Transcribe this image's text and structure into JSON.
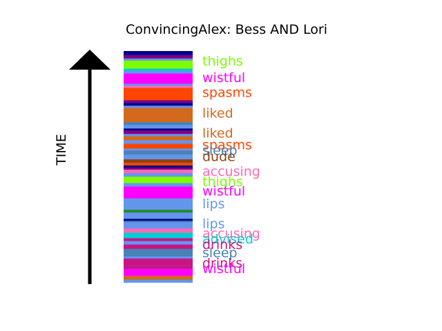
{
  "chart_data": {
    "type": "timeline-strip",
    "title": "ConvincingAlex: Bess AND Lori",
    "ylabel": "TIME",
    "ylim": [
      0,
      100
    ],
    "stripe_base_color": "#6495ED",
    "colors": {
      "thighs": "#7CFC00",
      "wistful": "#FF00FF",
      "spasms": "#FF4500",
      "liked": "#D2691E",
      "sleep": "#4682B4",
      "dude": "#8B4513",
      "accusing": "#FF69B4",
      "lips": "#6495ED",
      "advised": "#00CED1",
      "drinks": "#C71585",
      "indigo": "#00008B",
      "purple": "#800080"
    },
    "stripes": [
      {
        "y0": 0.0,
        "y1": 1.3,
        "color": "#6495ED"
      },
      {
        "y0": 1.3,
        "y1": 3.0,
        "color": "#D2691E"
      },
      {
        "y0": 3.0,
        "y1": 6.0,
        "color": "#FF00FF"
      },
      {
        "y0": 6.0,
        "y1": 7.2,
        "color": "#C71585"
      },
      {
        "y0": 7.2,
        "y1": 10.5,
        "color": "#C71585"
      },
      {
        "y0": 10.5,
        "y1": 11.4,
        "color": "#6495ED"
      },
      {
        "y0": 11.4,
        "y1": 14.6,
        "color": "#4682B4"
      },
      {
        "y0": 14.6,
        "y1": 16.5,
        "color": "#C71585"
      },
      {
        "y0": 16.5,
        "y1": 18.0,
        "color": "#6495ED"
      },
      {
        "y0": 18.0,
        "y1": 19.2,
        "color": "#C71585"
      },
      {
        "y0": 19.2,
        "y1": 21.6,
        "color": "#00CED1"
      },
      {
        "y0": 21.6,
        "y1": 23.4,
        "color": "#FF69B4"
      },
      {
        "y0": 23.4,
        "y1": 24.4,
        "color": "#6495ED"
      },
      {
        "y0": 24.4,
        "y1": 26.1,
        "color": "#6495ED"
      },
      {
        "y0": 26.1,
        "y1": 26.7,
        "color": "#4682B4"
      },
      {
        "y0": 26.7,
        "y1": 27.6,
        "color": "#00008B"
      },
      {
        "y0": 27.6,
        "y1": 29.1,
        "color": "#6495ED"
      },
      {
        "y0": 29.1,
        "y1": 30.3,
        "color": "#6495ED"
      },
      {
        "y0": 30.3,
        "y1": 31.5,
        "color": "#228B22"
      },
      {
        "y0": 31.5,
        "y1": 36.4,
        "color": "#6495ED"
      },
      {
        "y0": 36.4,
        "y1": 38.8,
        "color": "#FF00FF"
      },
      {
        "y0": 38.8,
        "y1": 41.5,
        "color": "#FF00FF"
      },
      {
        "y0": 41.5,
        "y1": 43.0,
        "color": "#6495ED"
      },
      {
        "y0": 43.0,
        "y1": 45.8,
        "color": "#7CFC00"
      },
      {
        "y0": 45.8,
        "y1": 47.3,
        "color": "#6495ED"
      },
      {
        "y0": 47.3,
        "y1": 48.8,
        "color": "#FF69B4"
      },
      {
        "y0": 48.8,
        "y1": 49.7,
        "color": "#800080"
      },
      {
        "y0": 49.7,
        "y1": 50.6,
        "color": "#00008B"
      },
      {
        "y0": 50.6,
        "y1": 51.8,
        "color": "#FF4500"
      },
      {
        "y0": 51.8,
        "y1": 53.3,
        "color": "#8B4513"
      },
      {
        "y0": 53.3,
        "y1": 55.4,
        "color": "#6495ED"
      },
      {
        "y0": 55.4,
        "y1": 57.0,
        "color": "#4682B4"
      },
      {
        "y0": 57.0,
        "y1": 57.9,
        "color": "#6495ED"
      },
      {
        "y0": 57.9,
        "y1": 60.0,
        "color": "#FF4500"
      },
      {
        "y0": 60.0,
        "y1": 61.5,
        "color": "#6495ED"
      },
      {
        "y0": 61.5,
        "y1": 63.3,
        "color": "#D2691E"
      },
      {
        "y0": 63.3,
        "y1": 64.2,
        "color": "#6495ED"
      },
      {
        "y0": 64.2,
        "y1": 65.7,
        "color": "#800080"
      },
      {
        "y0": 65.7,
        "y1": 66.6,
        "color": "#00008B"
      },
      {
        "y0": 66.6,
        "y1": 68.1,
        "color": "#6495ED"
      },
      {
        "y0": 68.1,
        "y1": 69.3,
        "color": "#4682B4"
      },
      {
        "y0": 69.3,
        "y1": 75.5,
        "color": "#D2691E"
      },
      {
        "y0": 75.5,
        "y1": 76.4,
        "color": "#6495ED"
      },
      {
        "y0": 76.4,
        "y1": 77.6,
        "color": "#00008B"
      },
      {
        "y0": 77.6,
        "y1": 78.8,
        "color": "#800080"
      },
      {
        "y0": 78.8,
        "y1": 84.1,
        "color": "#FF4500"
      },
      {
        "y0": 84.1,
        "y1": 85.0,
        "color": "#FF69B4"
      },
      {
        "y0": 85.0,
        "y1": 85.9,
        "color": "#6495ED"
      },
      {
        "y0": 85.9,
        "y1": 90.3,
        "color": "#FF00FF"
      },
      {
        "y0": 90.3,
        "y1": 91.5,
        "color": "#6495ED"
      },
      {
        "y0": 91.5,
        "y1": 92.4,
        "color": "#00CED1"
      },
      {
        "y0": 92.4,
        "y1": 95.9,
        "color": "#7CFC00"
      },
      {
        "y0": 95.9,
        "y1": 96.8,
        "color": "#6495ED"
      },
      {
        "y0": 96.8,
        "y1": 98.2,
        "color": "#800080"
      },
      {
        "y0": 98.2,
        "y1": 100.0,
        "color": "#00008B"
      }
    ],
    "labels": [
      {
        "text": "thighs",
        "y": 95.8,
        "color": "#7CFC00"
      },
      {
        "text": "wistful",
        "y": 88.7,
        "color": "#FF00FF"
      },
      {
        "text": "spasms",
        "y": 82.3,
        "color": "#FF4500"
      },
      {
        "text": "liked",
        "y": 73.4,
        "color": "#D2691E"
      },
      {
        "text": "liked",
        "y": 64.8,
        "color": "#D2691E"
      },
      {
        "text": "spasms",
        "y": 59.7,
        "color": "#FF4500"
      },
      {
        "text": "sleep",
        "y": 57.3,
        "color": "#4682B4"
      },
      {
        "text": "dude",
        "y": 54.6,
        "color": "#8B4513"
      },
      {
        "text": "accusing",
        "y": 48.2,
        "color": "#FF69B4"
      },
      {
        "text": "thighs",
        "y": 43.7,
        "color": "#7CFC00"
      },
      {
        "text": "wistful",
        "y": 39.7,
        "color": "#FF00FF"
      },
      {
        "text": "lips",
        "y": 34.3,
        "color": "#6495ED"
      },
      {
        "text": "lips",
        "y": 25.6,
        "color": "#6495ED"
      },
      {
        "text": "accusing",
        "y": 21.5,
        "color": "#FF69B4"
      },
      {
        "text": "advised",
        "y": 19.1,
        "color": "#00CED1"
      },
      {
        "text": "drinks",
        "y": 16.7,
        "color": "#C71585"
      },
      {
        "text": "sleep",
        "y": 13.1,
        "color": "#4682B4"
      },
      {
        "text": "drinks",
        "y": 8.6,
        "color": "#C71585"
      },
      {
        "text": "wistful",
        "y": 6.2,
        "color": "#FF00FF"
      }
    ]
  }
}
